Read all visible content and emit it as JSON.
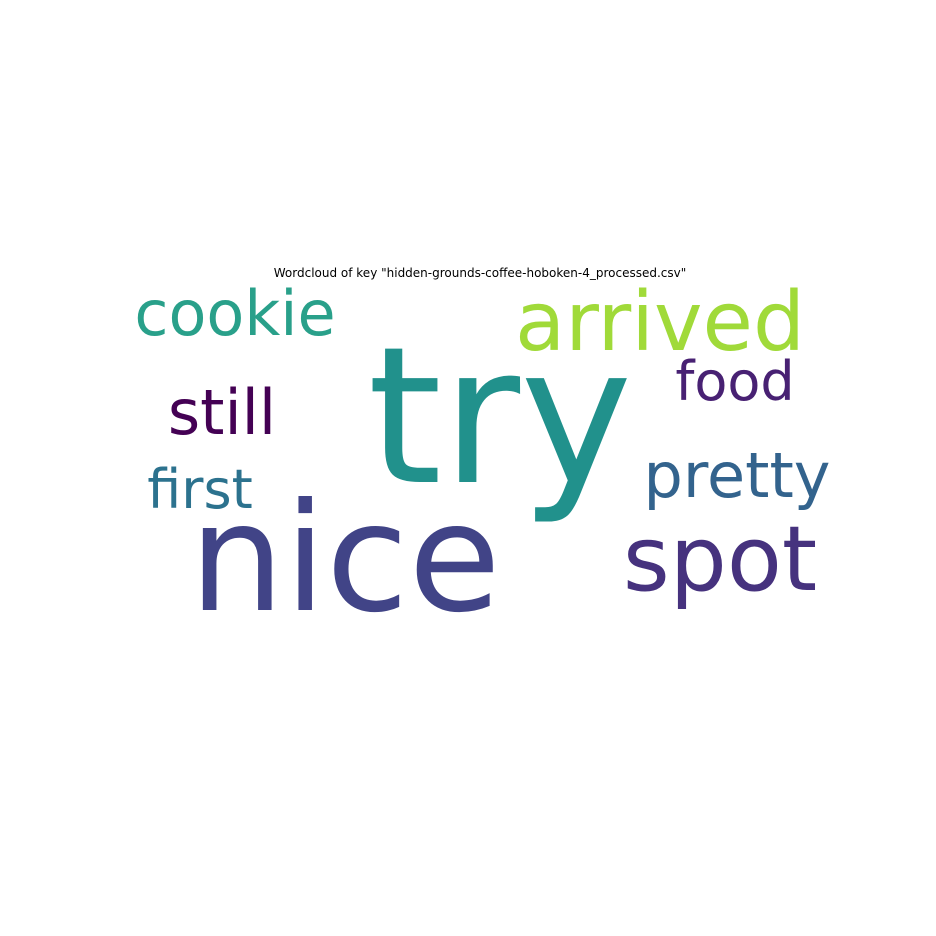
{
  "chart_data": {
    "type": "wordcloud",
    "title": "Wordcloud of key \"hidden-grounds-coffee-hoboken-4_processed.csv\"",
    "words": [
      {
        "text": "try",
        "color": "#21918c"
      },
      {
        "text": "nice",
        "color": "#414487"
      },
      {
        "text": "arrived",
        "color": "#a0da39"
      },
      {
        "text": "cookie",
        "color": "#29a08a"
      },
      {
        "text": "spot",
        "color": "#46327e"
      },
      {
        "text": "still",
        "color": "#440154"
      },
      {
        "text": "food",
        "color": "#482173"
      },
      {
        "text": "pretty",
        "color": "#33638d"
      },
      {
        "text": "first",
        "color": "#2c728e"
      }
    ]
  }
}
